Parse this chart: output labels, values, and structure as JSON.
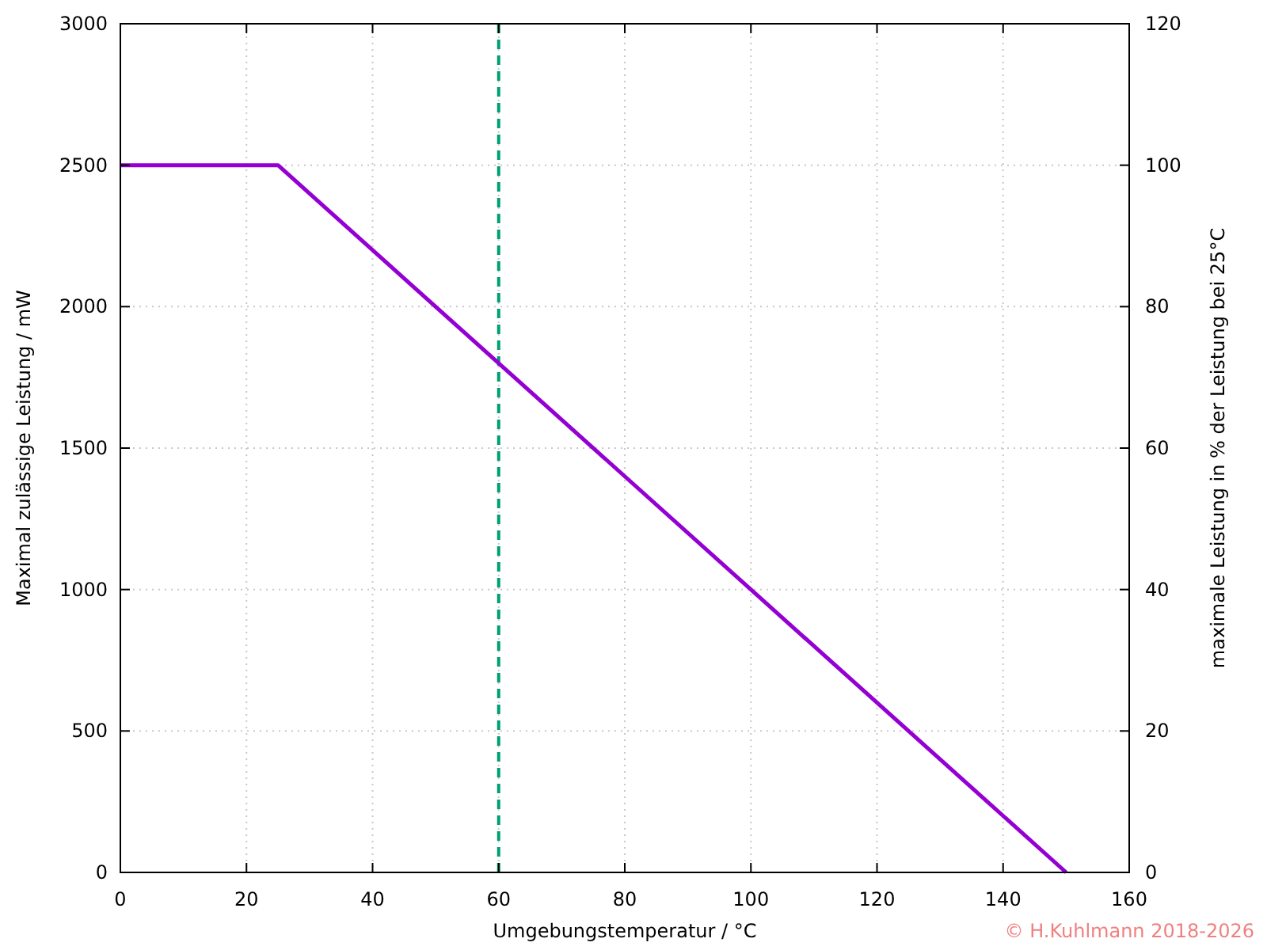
{
  "chart_data": {
    "type": "line",
    "xlabel": "Umgebungstemperatur / °C",
    "ylabel": "Maximal zulässige Leistung / mW",
    "y2label": "maximale Leistung in % der Leistung bei 25°C",
    "x": [
      0,
      25,
      150
    ],
    "series": [
      {
        "color": "#9400d3",
        "values": [
          2500,
          2500,
          0
        ]
      }
    ],
    "xlim": [
      0,
      160
    ],
    "xticks": [
      0,
      20,
      40,
      60,
      80,
      100,
      120,
      140,
      160
    ],
    "ylim": [
      0,
      3000
    ],
    "yticks": [
      0,
      500,
      1000,
      1500,
      2000,
      2500,
      3000
    ],
    "y2lim": [
      0,
      120
    ],
    "y2ticks": [
      0,
      20,
      40,
      60,
      80,
      100,
      120
    ],
    "ref_lines": [
      {
        "axis": "x",
        "value": 60,
        "color": "#009e73",
        "line_style": "dashed"
      }
    ],
    "grid": true,
    "marker": "none",
    "line_style": "solid",
    "annotations": [
      "© H.Kuhlmann 2018-2026"
    ]
  }
}
